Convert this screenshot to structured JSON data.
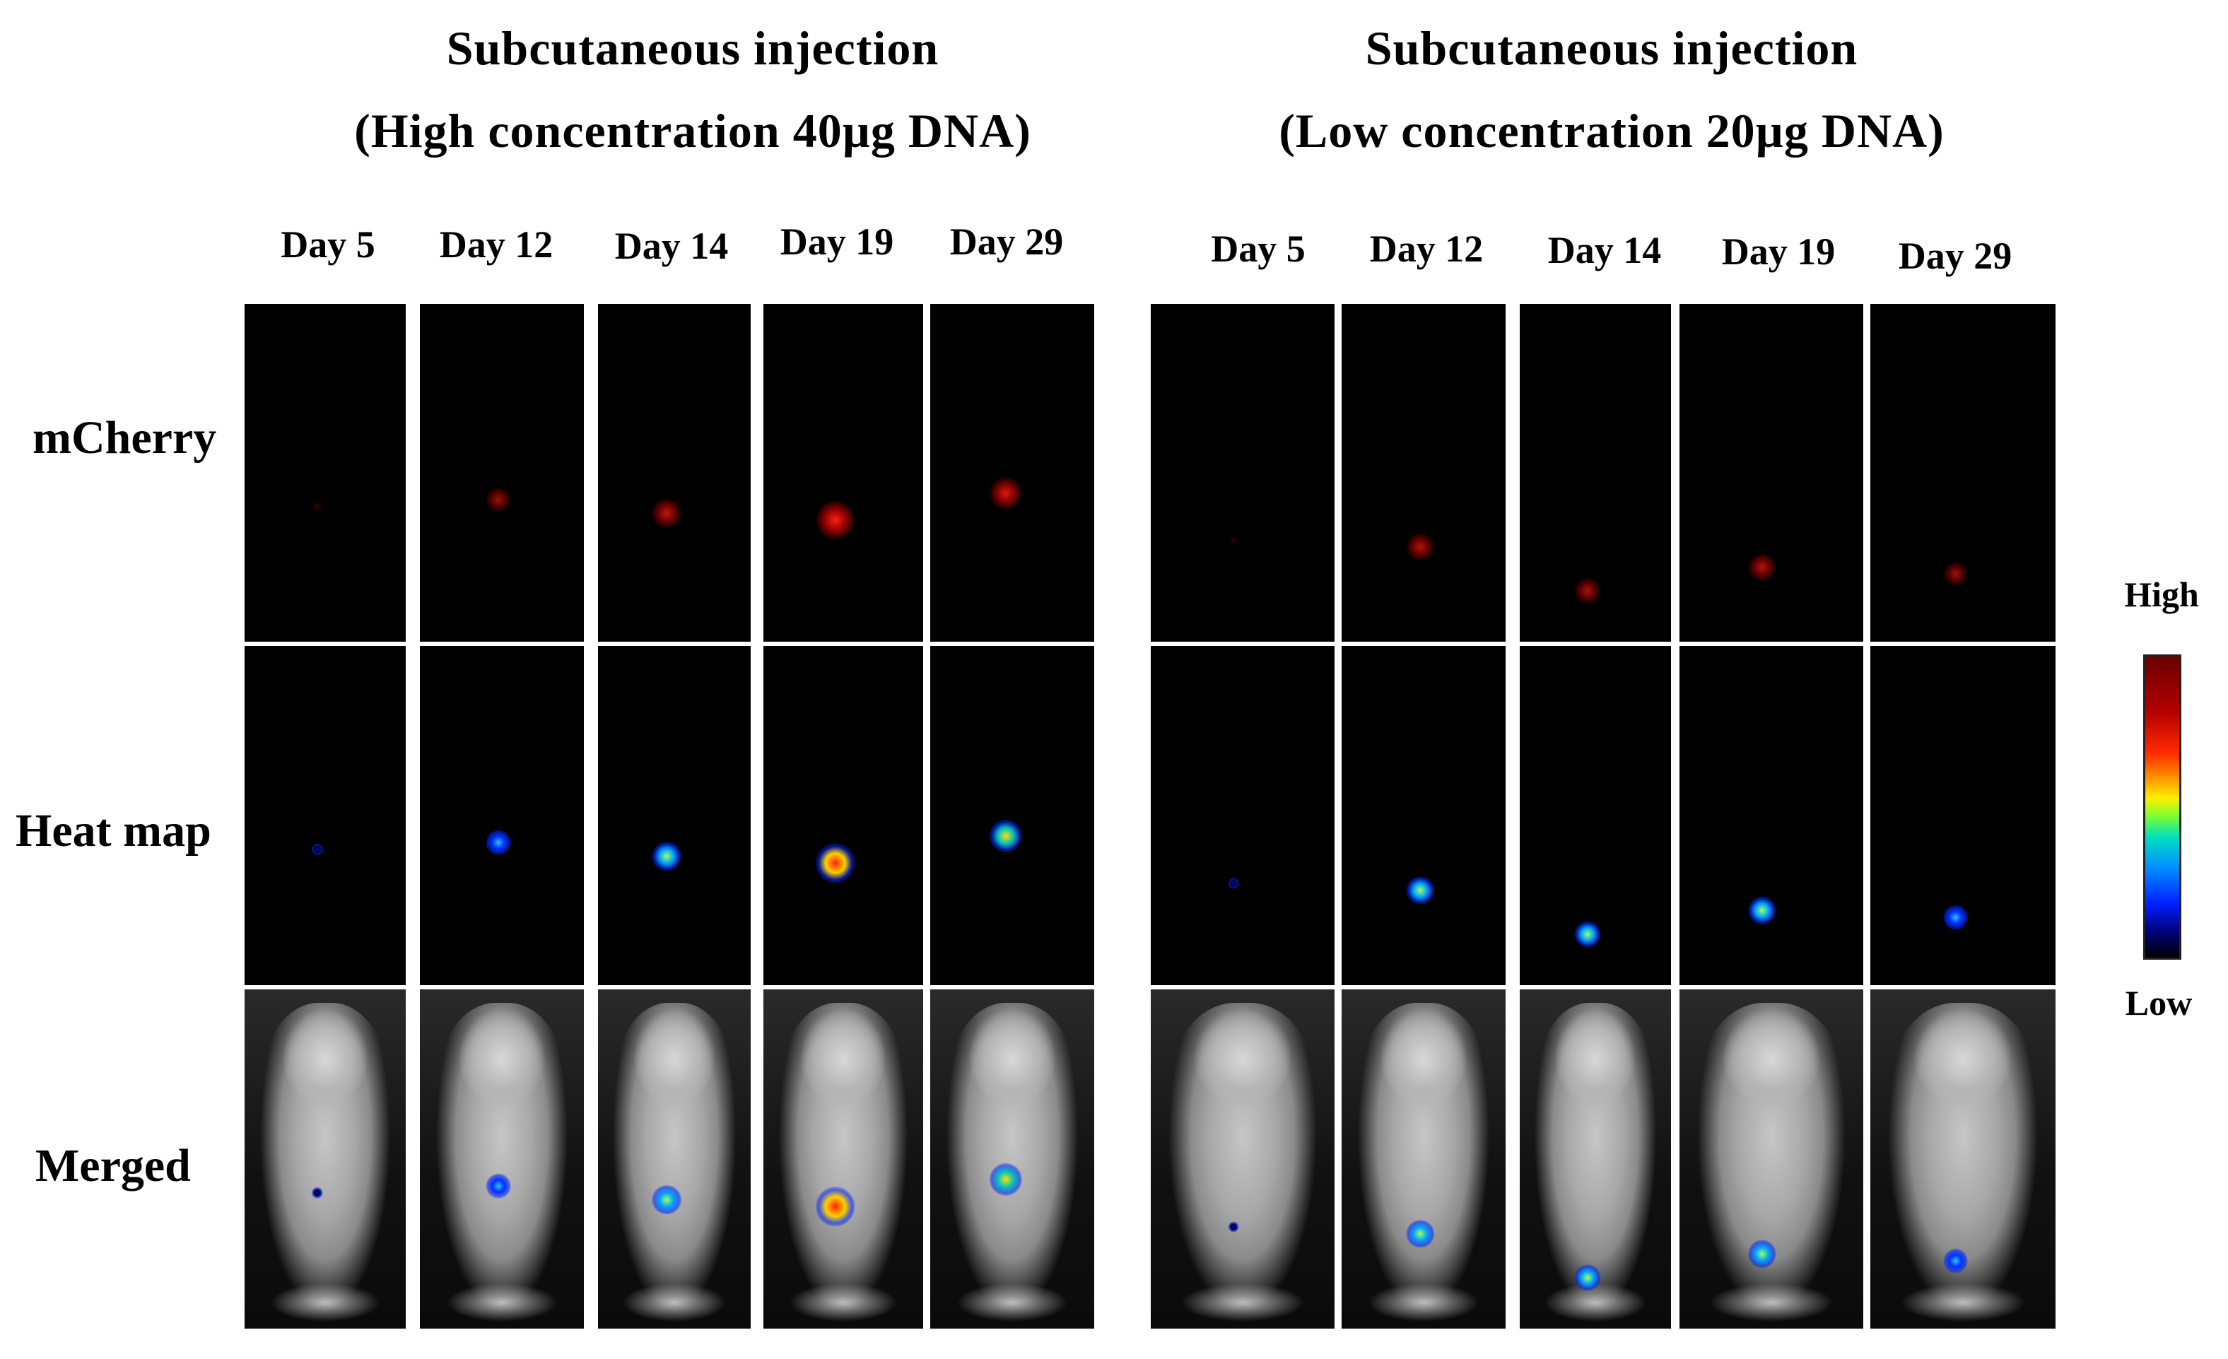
{
  "groups": [
    {
      "title_line1": "Subcutaneous injection",
      "title_line2": "(High concentration 40µg DNA)",
      "days": [
        "Day 5",
        "Day 12",
        "Day 14",
        "Day 19",
        "Day 29"
      ]
    },
    {
      "title_line1": "Subcutaneous injection",
      "title_line2": "(Low concentration 20µg DNA)",
      "days": [
        "Day 5",
        "Day 12",
        "Day 14",
        "Day 19",
        "Day 29"
      ]
    }
  ],
  "row_labels": [
    "mCherry",
    "Heat map",
    "Merged"
  ],
  "colorbar": {
    "high_label": "High",
    "low_label": "Low"
  },
  "signal_intensity": {
    "high_concentration": [
      0.05,
      0.45,
      0.6,
      0.9,
      0.7
    ],
    "low_concentration": [
      0.02,
      0.55,
      0.5,
      0.55,
      0.45
    ]
  }
}
